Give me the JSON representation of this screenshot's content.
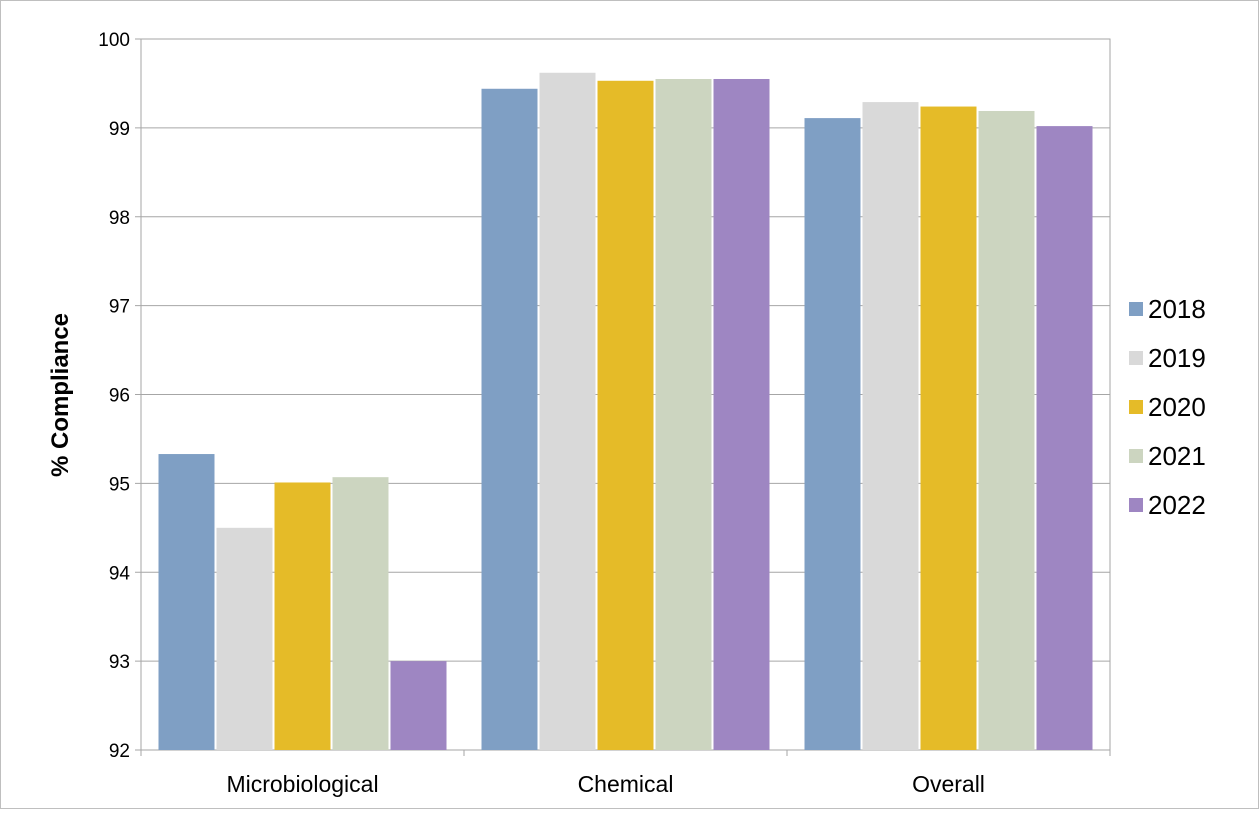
{
  "chart_data": {
    "type": "bar",
    "title": "",
    "xlabel": "",
    "ylabel": "% Compliance",
    "ylim": [
      92,
      100
    ],
    "yticks": [
      "92",
      "93",
      "94",
      "95",
      "96",
      "97",
      "98",
      "99",
      "100"
    ],
    "grid": true,
    "legend_position": "right",
    "categories": [
      "Microbiological",
      "Chemical",
      "Overall"
    ],
    "series": [
      {
        "name": "2018",
        "color": "#7f9fc4",
        "values": [
          95.33,
          99.44,
          99.11
        ]
      },
      {
        "name": "2019",
        "color": "#d9d9d9",
        "values": [
          94.5,
          99.62,
          99.29
        ]
      },
      {
        "name": "2020",
        "color": "#e5bb28",
        "values": [
          95.01,
          99.53,
          99.24
        ]
      },
      {
        "name": "2021",
        "color": "#ccd5c0",
        "values": [
          95.07,
          99.55,
          99.19
        ]
      },
      {
        "name": "2022",
        "color": "#9e86c2",
        "values": [
          93.0,
          99.55,
          99.02
        ]
      }
    ]
  }
}
